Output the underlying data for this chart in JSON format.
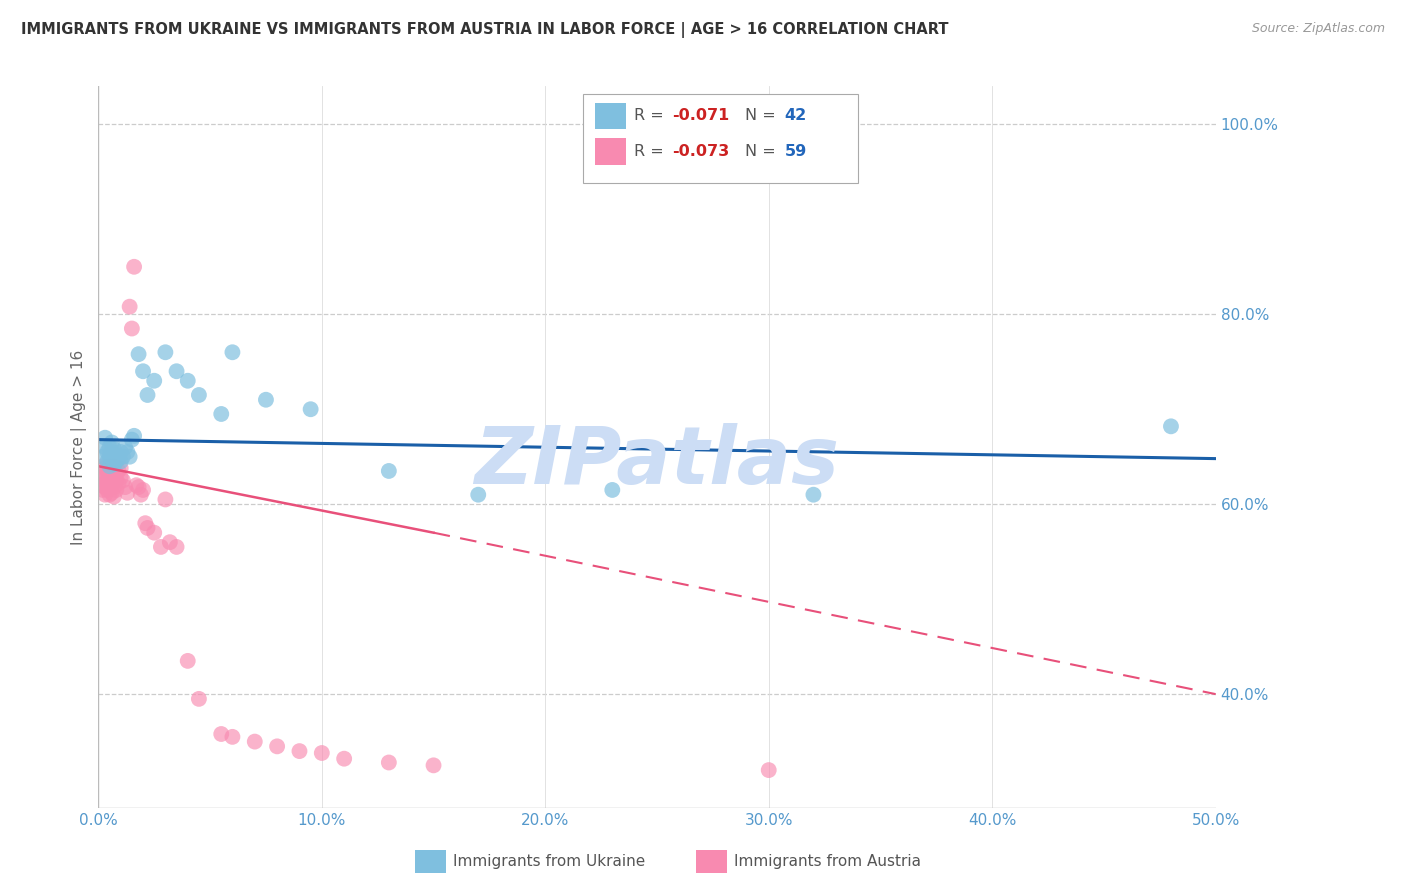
{
  "title": "IMMIGRANTS FROM UKRAINE VS IMMIGRANTS FROM AUSTRIA IN LABOR FORCE | AGE > 16 CORRELATION CHART",
  "source": "Source: ZipAtlas.com",
  "ylabel": "In Labor Force | Age > 16",
  "x_min": 0.0,
  "x_max": 0.5,
  "y_min": 0.28,
  "y_max": 1.04,
  "y_ticks": [
    0.4,
    0.6,
    0.8,
    1.0
  ],
  "y_tick_labels": [
    "40.0%",
    "60.0%",
    "80.0%",
    "100.0%"
  ],
  "x_ticks": [
    0.0,
    0.1,
    0.2,
    0.3,
    0.4,
    0.5
  ],
  "x_tick_labels": [
    "0.0%",
    "10.0%",
    "20.0%",
    "30.0%",
    "40.0%",
    "50.0%"
  ],
  "ukraine_color": "#7fbfdf",
  "austria_color": "#f88ab0",
  "ukraine_line_color": "#1a5fa8",
  "austria_line_color": "#e8507a",
  "legend_label_ukraine": "Immigrants from Ukraine",
  "legend_label_austria": "Immigrants from Austria",
  "ukraine_R": -0.071,
  "ukraine_N": 42,
  "austria_R": -0.073,
  "austria_N": 59,
  "ukraine_x": [
    0.002,
    0.003,
    0.003,
    0.004,
    0.004,
    0.005,
    0.005,
    0.005,
    0.006,
    0.006,
    0.006,
    0.007,
    0.007,
    0.007,
    0.008,
    0.008,
    0.009,
    0.01,
    0.01,
    0.011,
    0.012,
    0.013,
    0.014,
    0.015,
    0.016,
    0.018,
    0.02,
    0.022,
    0.025,
    0.03,
    0.035,
    0.04,
    0.045,
    0.055,
    0.06,
    0.075,
    0.095,
    0.13,
    0.17,
    0.23,
    0.32,
    0.48
  ],
  "ukraine_y": [
    0.65,
    0.66,
    0.67,
    0.645,
    0.655,
    0.64,
    0.65,
    0.66,
    0.648,
    0.655,
    0.665,
    0.642,
    0.65,
    0.658,
    0.645,
    0.652,
    0.648,
    0.645,
    0.655,
    0.65,
    0.66,
    0.655,
    0.65,
    0.668,
    0.672,
    0.758,
    0.74,
    0.715,
    0.73,
    0.76,
    0.74,
    0.73,
    0.715,
    0.695,
    0.76,
    0.71,
    0.7,
    0.635,
    0.61,
    0.615,
    0.61,
    0.682
  ],
  "austria_x": [
    0.001,
    0.001,
    0.002,
    0.002,
    0.002,
    0.003,
    0.003,
    0.003,
    0.003,
    0.004,
    0.004,
    0.004,
    0.005,
    0.005,
    0.005,
    0.005,
    0.006,
    0.006,
    0.006,
    0.007,
    0.007,
    0.007,
    0.007,
    0.008,
    0.008,
    0.008,
    0.009,
    0.009,
    0.01,
    0.01,
    0.011,
    0.012,
    0.013,
    0.014,
    0.015,
    0.016,
    0.017,
    0.018,
    0.019,
    0.02,
    0.021,
    0.022,
    0.025,
    0.028,
    0.03,
    0.032,
    0.035,
    0.04,
    0.045,
    0.055,
    0.06,
    0.07,
    0.08,
    0.09,
    0.1,
    0.11,
    0.13,
    0.15,
    0.3
  ],
  "austria_y": [
    0.63,
    0.62,
    0.64,
    0.625,
    0.615,
    0.638,
    0.628,
    0.618,
    0.61,
    0.635,
    0.625,
    0.615,
    0.64,
    0.63,
    0.622,
    0.61,
    0.63,
    0.62,
    0.612,
    0.64,
    0.625,
    0.618,
    0.608,
    0.632,
    0.625,
    0.615,
    0.635,
    0.622,
    0.638,
    0.628,
    0.625,
    0.618,
    0.612,
    0.808,
    0.785,
    0.85,
    0.62,
    0.618,
    0.61,
    0.615,
    0.58,
    0.575,
    0.57,
    0.555,
    0.605,
    0.56,
    0.555,
    0.435,
    0.395,
    0.358,
    0.355,
    0.35,
    0.345,
    0.34,
    0.338,
    0.332,
    0.328,
    0.325,
    0.32
  ],
  "background_color": "#ffffff",
  "watermark_text": "ZIPatlas",
  "watermark_color": "#ccddf5"
}
